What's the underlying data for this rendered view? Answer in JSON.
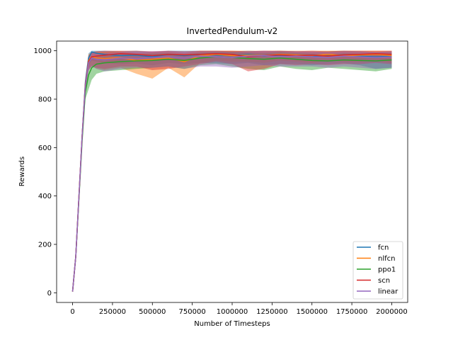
{
  "chart_data": {
    "type": "line",
    "title": "InvertedPendulum-v2",
    "xlabel": "Number of Timesteps",
    "ylabel": "Rewards",
    "xlim": [
      -100000,
      2100000
    ],
    "ylim": [
      -40,
      1040
    ],
    "xticks": [
      0,
      250000,
      500000,
      750000,
      1000000,
      1250000,
      1500000,
      1750000,
      2000000
    ],
    "xtick_labels": [
      "0",
      "250000",
      "500000",
      "750000",
      "1000000",
      "1250000",
      "1500000",
      "1750000",
      "2000000"
    ],
    "yticks": [
      0,
      200,
      400,
      600,
      800,
      1000
    ],
    "ytick_labels": [
      "0",
      "200",
      "400",
      "600",
      "800",
      "1000"
    ],
    "grid": false,
    "legend_position": "lower-right",
    "series": [
      {
        "name": "fcn",
        "color": "#1f77b4",
        "x": [
          0,
          20000,
          40000,
          60000,
          80000,
          100000,
          120000,
          150000,
          200000,
          300000,
          400000,
          500000,
          600000,
          700000,
          800000,
          900000,
          1000000,
          1100000,
          1200000,
          1300000,
          1400000,
          1500000,
          1600000,
          1700000,
          1800000,
          1900000,
          2000000
        ],
        "y": [
          5,
          150,
          400,
          650,
          870,
          970,
          995,
          990,
          985,
          980,
          982,
          975,
          985,
          980,
          985,
          982,
          980,
          985,
          978,
          982,
          980,
          978,
          980,
          982,
          978,
          975,
          978
        ],
        "lower": [
          5,
          140,
          390,
          640,
          850,
          940,
          960,
          955,
          950,
          945,
          948,
          940,
          950,
          945,
          950,
          948,
          945,
          950,
          940,
          945,
          945,
          940,
          945,
          948,
          940,
          925,
          930
        ],
        "upper": [
          5,
          160,
          410,
          660,
          890,
          990,
          1000,
          1000,
          1000,
          998,
          1000,
          995,
          1000,
          1000,
          1000,
          1000,
          998,
          1000,
          998,
          1000,
          998,
          995,
          998,
          1000,
          998,
          995,
          998
        ]
      },
      {
        "name": "nlfcn",
        "color": "#ff7f0e",
        "x": [
          0,
          20000,
          40000,
          60000,
          80000,
          100000,
          120000,
          150000,
          200000,
          300000,
          400000,
          500000,
          600000,
          700000,
          800000,
          900000,
          1000000,
          1100000,
          1200000,
          1300000,
          1400000,
          1500000,
          1600000,
          1700000,
          1800000,
          1900000,
          2000000
        ],
        "y": [
          5,
          150,
          400,
          650,
          860,
          960,
          975,
          970,
          968,
          972,
          960,
          965,
          970,
          955,
          980,
          985,
          980,
          982,
          980,
          985,
          983,
          980,
          985,
          980,
          982,
          985,
          980
        ],
        "lower": [
          5,
          140,
          390,
          640,
          840,
          930,
          940,
          925,
          920,
          930,
          905,
          885,
          930,
          890,
          950,
          960,
          955,
          955,
          950,
          960,
          955,
          950,
          960,
          955,
          955,
          960,
          950
        ],
        "upper": [
          5,
          160,
          410,
          660,
          880,
          985,
          995,
          995,
          995,
          998,
          990,
          995,
          998,
          990,
          1000,
          1000,
          1000,
          1000,
          1000,
          1000,
          1000,
          1000,
          1000,
          1000,
          1000,
          1000,
          1000
        ]
      },
      {
        "name": "ppo1",
        "color": "#2ca02c",
        "x": [
          0,
          20000,
          40000,
          60000,
          80000,
          100000,
          120000,
          150000,
          200000,
          300000,
          400000,
          500000,
          600000,
          700000,
          800000,
          900000,
          1000000,
          1100000,
          1200000,
          1300000,
          1400000,
          1500000,
          1600000,
          1700000,
          1800000,
          1900000,
          2000000
        ],
        "y": [
          5,
          150,
          390,
          630,
          830,
          900,
          930,
          945,
          950,
          955,
          958,
          960,
          965,
          960,
          970,
          975,
          972,
          968,
          965,
          970,
          965,
          960,
          958,
          962,
          960,
          958,
          962
        ],
        "lower": [
          5,
          140,
          380,
          620,
          800,
          840,
          880,
          905,
          915,
          920,
          925,
          930,
          935,
          925,
          940,
          945,
          935,
          925,
          920,
          935,
          925,
          920,
          930,
          925,
          920,
          915,
          925
        ],
        "upper": [
          5,
          160,
          400,
          640,
          860,
          950,
          970,
          975,
          980,
          985,
          985,
          988,
          990,
          985,
          992,
          995,
          995,
          992,
          990,
          995,
          990,
          988,
          985,
          990,
          988,
          985,
          990
        ]
      },
      {
        "name": "scn",
        "color": "#d62728",
        "x": [
          0,
          20000,
          40000,
          60000,
          80000,
          100000,
          120000,
          150000,
          200000,
          300000,
          400000,
          500000,
          600000,
          700000,
          800000,
          900000,
          1000000,
          1100000,
          1200000,
          1300000,
          1400000,
          1500000,
          1600000,
          1700000,
          1800000,
          1900000,
          2000000
        ],
        "y": [
          5,
          150,
          400,
          650,
          860,
          955,
          975,
          978,
          982,
          988,
          985,
          980,
          985,
          983,
          985,
          988,
          985,
          975,
          980,
          983,
          980,
          982,
          978,
          983,
          985,
          988,
          985
        ],
        "lower": [
          5,
          140,
          390,
          640,
          840,
          920,
          935,
          930,
          925,
          935,
          935,
          920,
          925,
          935,
          945,
          955,
          945,
          915,
          925,
          945,
          940,
          945,
          940,
          945,
          945,
          950,
          945
        ],
        "upper": [
          5,
          160,
          410,
          660,
          880,
          980,
          995,
          998,
          1000,
          1000,
          1000,
          998,
          1000,
          998,
          1000,
          1000,
          1000,
          998,
          1000,
          1000,
          998,
          1000,
          998,
          1000,
          1000,
          1000,
          1000
        ]
      },
      {
        "name": "linear",
        "color": "#9467bd",
        "x": [
          0,
          20000,
          40000,
          60000,
          80000,
          100000,
          120000,
          150000,
          200000,
          300000,
          400000,
          500000,
          600000,
          700000,
          800000,
          900000,
          1000000,
          1100000,
          1200000,
          1300000,
          1400000,
          1500000,
          1600000,
          1700000,
          1800000,
          1900000,
          2000000
        ],
        "y": [
          5,
          150,
          400,
          650,
          855,
          950,
          970,
          965,
          962,
          970,
          968,
          972,
          975,
          970,
          978,
          975,
          972,
          978,
          980,
          975,
          978,
          975,
          972,
          978,
          975,
          972,
          975
        ],
        "lower": [
          5,
          140,
          390,
          640,
          835,
          920,
          935,
          925,
          915,
          925,
          930,
          930,
          935,
          925,
          935,
          935,
          930,
          935,
          940,
          935,
          935,
          935,
          930,
          935,
          930,
          925,
          930
        ],
        "upper": [
          5,
          160,
          410,
          660,
          875,
          975,
          992,
          990,
          990,
          995,
          995,
          998,
          998,
          995,
          998,
          998,
          995,
          998,
          1000,
          998,
          998,
          998,
          995,
          998,
          998,
          995,
          998
        ]
      }
    ]
  }
}
